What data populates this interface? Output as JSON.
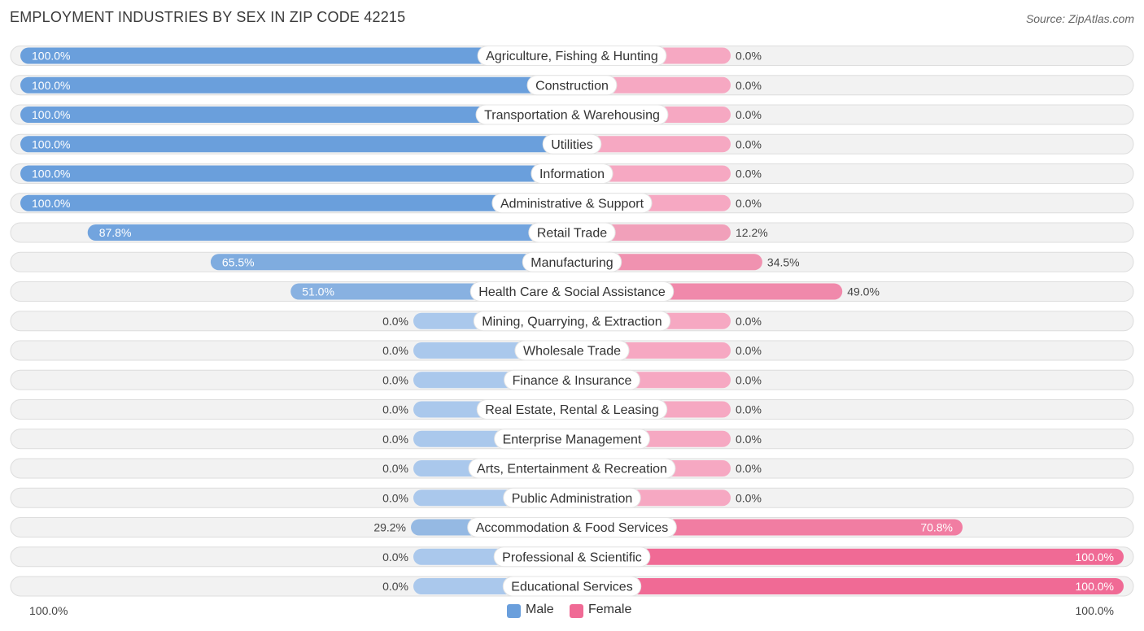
{
  "title": "EMPLOYMENT INDUSTRIES BY SEX IN ZIP CODE 42215",
  "source": "Source: ZipAtlas.com",
  "colors": {
    "male_strong": "#6a9fdc",
    "male_light": "#aac8ec",
    "female_strong": "#f06a95",
    "female_light": "#f6a8c2",
    "row_bg": "#f2f2f2",
    "row_border": "#dddddd"
  },
  "legend": {
    "male_label": "Male",
    "female_label": "Female"
  },
  "axis": {
    "left_label": "100.0%",
    "right_label": "100.0%"
  },
  "chart_data": {
    "type": "bar",
    "orientation": "diverging-horizontal",
    "title": "EMPLOYMENT INDUSTRIES BY SEX IN ZIP CODE 42215",
    "xlim": [
      0,
      100
    ],
    "unit": "%",
    "categories": [
      "Agriculture, Fishing & Hunting",
      "Construction",
      "Transportation & Warehousing",
      "Utilities",
      "Information",
      "Administrative & Support",
      "Retail Trade",
      "Manufacturing",
      "Health Care & Social Assistance",
      "Mining, Quarrying, & Extraction",
      "Wholesale Trade",
      "Finance & Insurance",
      "Real Estate, Rental & Leasing",
      "Enterprise Management",
      "Arts, Entertainment & Recreation",
      "Public Administration",
      "Accommodation & Food Services",
      "Professional & Scientific",
      "Educational Services"
    ],
    "series": [
      {
        "name": "Male",
        "values": [
          100.0,
          100.0,
          100.0,
          100.0,
          100.0,
          100.0,
          87.8,
          65.5,
          51.0,
          0.0,
          0.0,
          0.0,
          0.0,
          0.0,
          0.0,
          0.0,
          29.2,
          0.0,
          0.0
        ]
      },
      {
        "name": "Female",
        "values": [
          0.0,
          0.0,
          0.0,
          0.0,
          0.0,
          0.0,
          12.2,
          34.5,
          49.0,
          0.0,
          0.0,
          0.0,
          0.0,
          0.0,
          0.0,
          0.0,
          70.8,
          100.0,
          100.0
        ]
      }
    ],
    "value_labels_male": [
      "100.0%",
      "100.0%",
      "100.0%",
      "100.0%",
      "100.0%",
      "100.0%",
      "87.8%",
      "65.5%",
      "51.0%",
      "0.0%",
      "0.0%",
      "0.0%",
      "0.0%",
      "0.0%",
      "0.0%",
      "0.0%",
      "29.2%",
      "0.0%",
      "0.0%"
    ],
    "value_labels_female": [
      "0.0%",
      "0.0%",
      "0.0%",
      "0.0%",
      "0.0%",
      "0.0%",
      "12.2%",
      "34.5%",
      "49.0%",
      "0.0%",
      "0.0%",
      "0.0%",
      "0.0%",
      "0.0%",
      "0.0%",
      "0.0%",
      "70.8%",
      "100.0%",
      "100.0%"
    ],
    "legend": [
      "Male",
      "Female"
    ],
    "legend_position": "bottom-center"
  }
}
